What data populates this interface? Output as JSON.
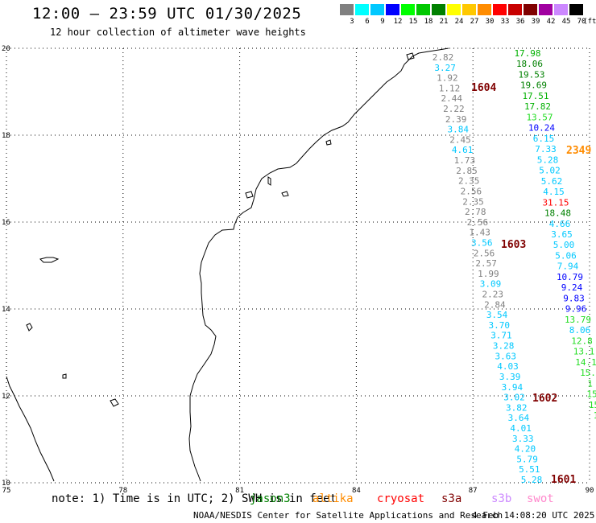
{
  "header": {
    "title": "12:00 – 23:59 UTC 01/30/2025",
    "subtitle": "12 hour collection of altimeter wave heights"
  },
  "color_scale": {
    "unit": "(ft)",
    "bins": [
      {
        "label": "3",
        "color": "#808080"
      },
      {
        "label": "6",
        "color": "#00ffff"
      },
      {
        "label": "9",
        "color": "#00c8ff"
      },
      {
        "label": "12",
        "color": "#0000ff"
      },
      {
        "label": "15",
        "color": "#00ff00"
      },
      {
        "label": "18",
        "color": "#00c800"
      },
      {
        "label": "21",
        "color": "#008000"
      },
      {
        "label": "24",
        "color": "#ffff00"
      },
      {
        "label": "27",
        "color": "#ffc800"
      },
      {
        "label": "30",
        "color": "#ff8c00"
      },
      {
        "label": "33",
        "color": "#ff0000"
      },
      {
        "label": "36",
        "color": "#c80000"
      },
      {
        "label": "39",
        "color": "#800000"
      },
      {
        "label": "42",
        "color": "#a000a0"
      },
      {
        "label": "45",
        "color": "#cc88ff"
      },
      {
        "label": "70",
        "color": "#000000"
      }
    ]
  },
  "map": {
    "lon_range": [
      75,
      90
    ],
    "lat_range": [
      10,
      20
    ],
    "x_tick_labels": [
      "75",
      "78",
      "81",
      "84",
      "87",
      "90"
    ],
    "y_tick_labels": [
      "20",
      "18",
      "16",
      "14",
      "12",
      "10"
    ]
  },
  "chart_data": {
    "type": "scatter",
    "description_of_values": "significant wave height labels along altimeter tracks",
    "passes": [
      {
        "id": "1604",
        "color": "#800000"
      },
      {
        "id": "2349",
        "color": "#ff8c00"
      },
      {
        "id": "1603",
        "color": "#800000"
      },
      {
        "id": "1602",
        "color": "#800000"
      },
      {
        "id": "1601",
        "color": "#800000"
      }
    ],
    "track_west": [
      {
        "v": "2.82",
        "c": "#808080"
      },
      {
        "v": "3.27",
        "c": "#00c8ff"
      },
      {
        "v": "1.92",
        "c": "#808080"
      },
      {
        "v": "1.12",
        "c": "#808080"
      },
      {
        "v": "2.44",
        "c": "#808080"
      },
      {
        "v": "2.22",
        "c": "#808080"
      },
      {
        "v": "2.39",
        "c": "#808080"
      },
      {
        "v": "3.84",
        "c": "#00c8ff"
      },
      {
        "v": "2.45",
        "c": "#808080"
      },
      {
        "v": "4.61",
        "c": "#00c8ff"
      },
      {
        "v": "1.73",
        "c": "#808080"
      },
      {
        "v": "2.85",
        "c": "#808080"
      },
      {
        "v": "2.35",
        "c": "#808080"
      },
      {
        "v": "2.56",
        "c": "#808080"
      },
      {
        "v": "2.35",
        "c": "#808080"
      },
      {
        "v": "2.78",
        "c": "#808080"
      },
      {
        "v": "2.56",
        "c": "#808080"
      },
      {
        "v": "1.43",
        "c": "#808080"
      },
      {
        "v": "3.56",
        "c": "#00c8ff"
      },
      {
        "v": "2.56",
        "c": "#808080"
      },
      {
        "v": "2.57",
        "c": "#808080"
      },
      {
        "v": "1.99",
        "c": "#808080"
      },
      {
        "v": "3.09",
        "c": "#00c8ff"
      },
      {
        "v": "2.23",
        "c": "#808080"
      },
      {
        "v": "2.84",
        "c": "#808080"
      },
      {
        "v": "3.54",
        "c": "#00c8ff"
      },
      {
        "v": "3.70",
        "c": "#00c8ff"
      },
      {
        "v": "3.71",
        "c": "#00c8ff"
      },
      {
        "v": "3.28",
        "c": "#00c8ff"
      },
      {
        "v": "3.63",
        "c": "#00c8ff"
      },
      {
        "v": "4.03",
        "c": "#00c8ff"
      },
      {
        "v": "3.39",
        "c": "#00c8ff"
      },
      {
        "v": "3.94",
        "c": "#00c8ff"
      },
      {
        "v": "3.02",
        "c": "#00c8ff"
      },
      {
        "v": "3.82",
        "c": "#00c8ff"
      },
      {
        "v": "3.64",
        "c": "#00c8ff"
      },
      {
        "v": "4.01",
        "c": "#00c8ff"
      },
      {
        "v": "3.33",
        "c": "#00c8ff"
      },
      {
        "v": "4.20",
        "c": "#00c8ff"
      },
      {
        "v": "5.79",
        "c": "#00c8ff"
      },
      {
        "v": "5.51",
        "c": "#00c8ff"
      },
      {
        "v": "5.28",
        "c": "#00c8ff"
      }
    ],
    "track_east": [
      {
        "v": "17.98",
        "c": "#00b000"
      },
      {
        "v": "18.06",
        "c": "#008000"
      },
      {
        "v": "19.53",
        "c": "#008000"
      },
      {
        "v": "19.69",
        "c": "#008000"
      },
      {
        "v": "17.51",
        "c": "#00b000"
      },
      {
        "v": "17.82",
        "c": "#00b000"
      },
      {
        "v": "13.57",
        "c": "#22dd22"
      },
      {
        "v": "10.24",
        "c": "#0000ff"
      },
      {
        "v": "6.15",
        "c": "#00c8ff"
      },
      {
        "v": "7.33",
        "c": "#00c8ff"
      },
      {
        "v": "5.28",
        "c": "#00c8ff"
      },
      {
        "v": "5.02",
        "c": "#00c8ff"
      },
      {
        "v": "5.62",
        "c": "#00c8ff"
      },
      {
        "v": "4.15",
        "c": "#00c8ff"
      },
      {
        "v": "31.15",
        "c": "#ff0000"
      },
      {
        "v": "18.48",
        "c": "#008000"
      },
      {
        "v": "4.66",
        "c": "#00c8ff"
      },
      {
        "v": "3.65",
        "c": "#00c8ff"
      },
      {
        "v": "5.00",
        "c": "#00c8ff"
      },
      {
        "v": "5.06",
        "c": "#00c8ff"
      },
      {
        "v": "7.94",
        "c": "#00c8ff"
      },
      {
        "v": "10.79",
        "c": "#0000ff"
      },
      {
        "v": "9.24",
        "c": "#0000ff"
      },
      {
        "v": "9.83",
        "c": "#0000ff"
      },
      {
        "v": "9.96",
        "c": "#0000ff"
      },
      {
        "v": "13.79",
        "c": "#22dd22"
      },
      {
        "v": "8.06",
        "c": "#00c8ff"
      },
      {
        "v": "12.8",
        "c": "#22dd22"
      },
      {
        "v": "13.1",
        "c": "#22dd22"
      },
      {
        "v": "14.1",
        "c": "#22dd22"
      },
      {
        "v": "15.",
        "c": "#22dd22"
      },
      {
        "v": "1",
        "c": "#22dd22"
      },
      {
        "v": "15",
        "c": "#22dd22"
      },
      {
        "v": "15",
        "c": "#22dd22"
      },
      {
        "v": "1",
        "c": "#22dd22"
      }
    ]
  },
  "footer": {
    "note": "note: 1) Time is in UTC; 2) SWH is in feet",
    "satellites": [
      {
        "name": "jason3",
        "color": "#008000"
      },
      {
        "name": "altika",
        "color": "#ff8c00"
      },
      {
        "name": "cryosat",
        "color": "#ff0000"
      },
      {
        "name": "s3a",
        "color": "#800000"
      },
      {
        "name": "s3b",
        "color": "#cc88ff"
      },
      {
        "name": "swot",
        "color": "#ff88cc"
      }
    ],
    "credit": "NOAA/NESDIS Center for Satellite Applications and Research",
    "timestamp": "4 Feb 14:08:20 UTC 2025"
  }
}
